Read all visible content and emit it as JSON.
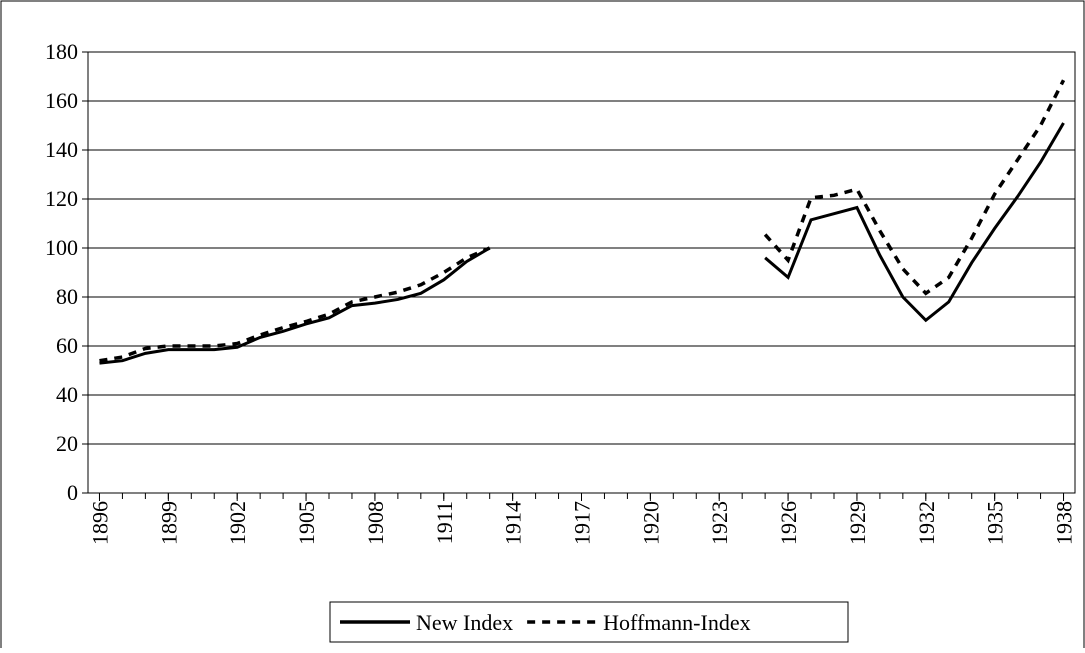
{
  "chart_data": {
    "type": "line",
    "x": [
      1896,
      1897,
      1898,
      1899,
      1900,
      1901,
      1902,
      1903,
      1904,
      1905,
      1906,
      1907,
      1908,
      1909,
      1910,
      1911,
      1912,
      1913,
      1914,
      1915,
      1916,
      1917,
      1918,
      1919,
      1920,
      1921,
      1922,
      1923,
      1924,
      1925,
      1926,
      1927,
      1928,
      1929,
      1930,
      1931,
      1932,
      1933,
      1934,
      1935,
      1936,
      1937,
      1938
    ],
    "series": [
      {
        "name": "New Index",
        "color": "#000000",
        "style": "solid",
        "values": [
          53,
          54,
          57,
          58.5,
          58.5,
          58.5,
          59.5,
          63.5,
          66,
          69,
          71.5,
          76.5,
          77.5,
          79,
          81.5,
          87,
          94.5,
          100,
          null,
          null,
          null,
          null,
          null,
          null,
          null,
          null,
          null,
          null,
          null,
          96,
          88,
          111.5,
          114,
          116.5,
          97,
          80,
          70.5,
          78,
          94,
          108,
          121,
          135,
          151
        ]
      },
      {
        "name": "Hoffmann-Index",
        "color": "#000000",
        "style": "dashed",
        "values": [
          54,
          55.5,
          59,
          60,
          60,
          60,
          61,
          64.5,
          67.5,
          70,
          73,
          78,
          80,
          82,
          85,
          90,
          96,
          100,
          null,
          null,
          null,
          null,
          null,
          null,
          null,
          null,
          null,
          null,
          null,
          105.5,
          95,
          120.5,
          121.5,
          124,
          107,
          91.5,
          81.5,
          88,
          104,
          122,
          136,
          150,
          168.5
        ]
      }
    ],
    "xlim": [
      1895.5,
      1938.5
    ],
    "xticks": [
      1896,
      1899,
      1902,
      1905,
      1908,
      1911,
      1914,
      1917,
      1920,
      1923,
      1926,
      1929,
      1932,
      1935,
      1938
    ],
    "ylim": [
      0,
      180
    ],
    "yticks": [
      0,
      20,
      40,
      60,
      80,
      100,
      120,
      140,
      160,
      180
    ],
    "grid": true,
    "legend": "bottom"
  }
}
